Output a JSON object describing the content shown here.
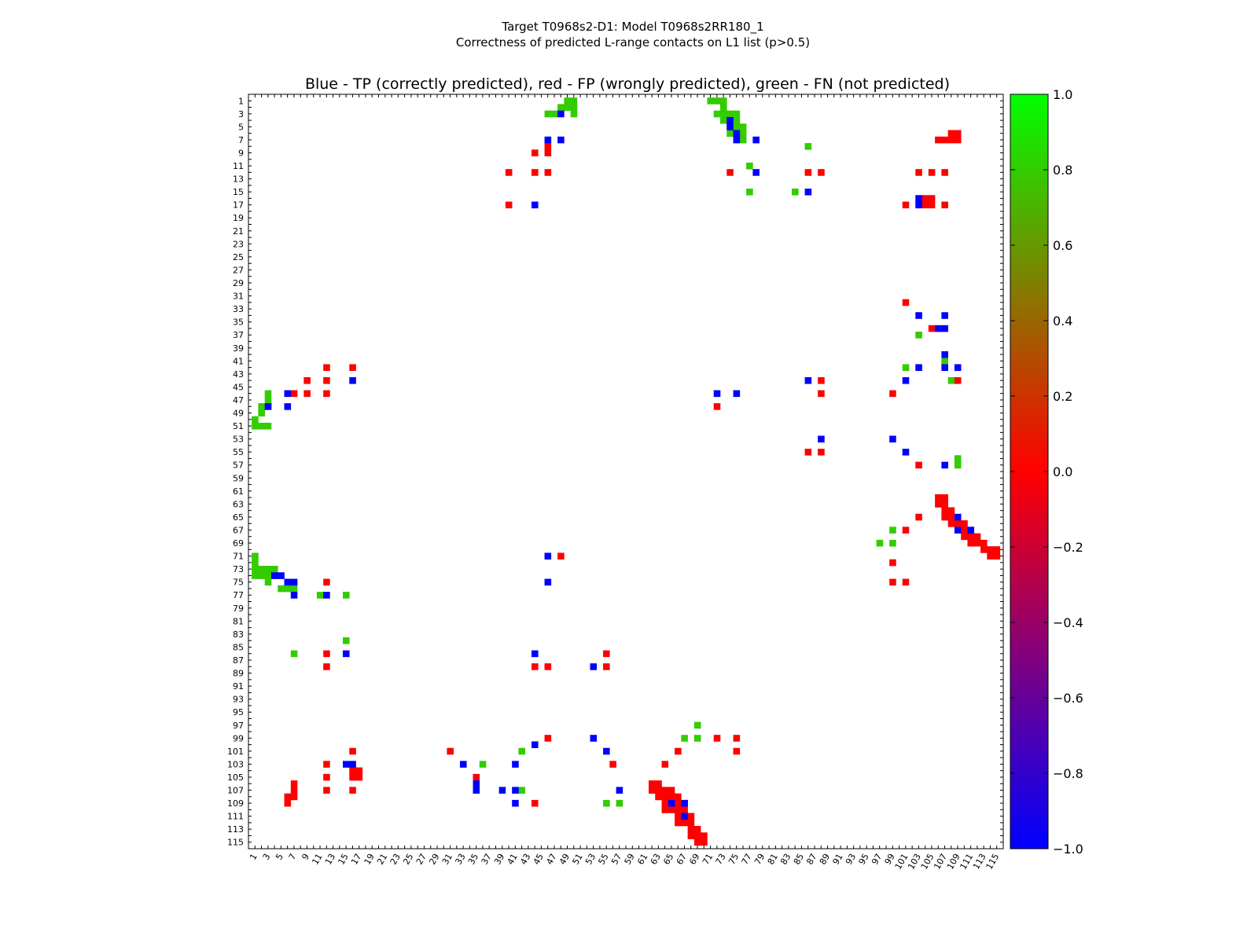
{
  "chart_data": {
    "type": "heatmap",
    "suptitle_line1": "Target T0968s2-D1: Model T0968s2RR180_1",
    "suptitle_line2": "Correctness of predicted L-range contacts on L1 list (p>0.5)",
    "title": "Blue - TP (correctly predicted), red - FP (wrongly predicted), green - FN (not predicted)",
    "n_residues": 115,
    "axis_ticks": [
      1,
      3,
      5,
      7,
      9,
      11,
      13,
      15,
      17,
      19,
      21,
      23,
      25,
      27,
      29,
      31,
      33,
      35,
      37,
      39,
      41,
      43,
      45,
      47,
      49,
      51,
      53,
      55,
      57,
      59,
      61,
      63,
      65,
      67,
      69,
      71,
      73,
      75,
      77,
      79,
      81,
      83,
      85,
      87,
      89,
      91,
      93,
      95,
      97,
      99,
      101,
      103,
      105,
      107,
      109,
      111,
      113,
      115
    ],
    "colorbar": {
      "min": -1.0,
      "max": 1.0,
      "ticks": [
        1.0,
        0.8,
        0.6,
        0.4,
        0.2,
        0.0,
        -0.2,
        -0.4,
        -0.6,
        -0.8,
        -1.0
      ],
      "tick_labels": [
        "1.0",
        "0.8",
        "0.6",
        "0.4",
        "0.2",
        "0.0",
        "−0.2",
        "−0.4",
        "−0.6",
        "−0.8",
        "−1.0"
      ],
      "colors": {
        "tp": "#0000ff",
        "fp": "#ff0000",
        "fn": "#33cc00"
      }
    },
    "legend": {
      "tp": "TP",
      "fp": "FP",
      "fn": "FN"
    },
    "cells": {
      "tp": [
        [
          3,
          48
        ],
        [
          4,
          74
        ],
        [
          5,
          74
        ],
        [
          6,
          75
        ],
        [
          7,
          46
        ],
        [
          7,
          48
        ],
        [
          7,
          75
        ],
        [
          7,
          78
        ],
        [
          12,
          78
        ],
        [
          15,
          86
        ],
        [
          16,
          103
        ],
        [
          17,
          103
        ],
        [
          17,
          44
        ],
        [
          34,
          103
        ],
        [
          34,
          107
        ],
        [
          36,
          106
        ],
        [
          36,
          107
        ],
        [
          40,
          107
        ],
        [
          42,
          103
        ],
        [
          42,
          107
        ],
        [
          42,
          109
        ],
        [
          44,
          16
        ],
        [
          44,
          86
        ],
        [
          44,
          101
        ],
        [
          46,
          6
        ],
        [
          46,
          72
        ],
        [
          46,
          75
        ],
        [
          48,
          3
        ],
        [
          48,
          6
        ],
        [
          53,
          88
        ],
        [
          53,
          99
        ],
        [
          55,
          101
        ],
        [
          57,
          107
        ],
        [
          71,
          46
        ],
        [
          74,
          4
        ],
        [
          74,
          5
        ],
        [
          75,
          6
        ],
        [
          75,
          7
        ],
        [
          75,
          46
        ],
        [
          77,
          7
        ],
        [
          77,
          12
        ],
        [
          86,
          15
        ],
        [
          86,
          44
        ],
        [
          88,
          53
        ],
        [
          99,
          53
        ],
        [
          100,
          44
        ],
        [
          101,
          55
        ],
        [
          103,
          15
        ],
        [
          103,
          16
        ],
        [
          103,
          33
        ],
        [
          103,
          41
        ],
        [
          106,
          35
        ],
        [
          107,
          35
        ],
        [
          107,
          39
        ],
        [
          107,
          41
        ],
        [
          107,
          57
        ],
        [
          109,
          41
        ],
        [
          109,
          65
        ],
        [
          109,
          67
        ],
        [
          111,
          67
        ],
        [
          65,
          109
        ],
        [
          67,
          109
        ],
        [
          67,
          111
        ]
      ],
      "fp": [
        [
          7,
          106
        ],
        [
          7,
          107
        ],
        [
          7,
          108
        ],
        [
          7,
          109
        ],
        [
          6,
          108
        ],
        [
          6,
          109
        ],
        [
          8,
          46
        ],
        [
          9,
          44
        ],
        [
          9,
          46
        ],
        [
          12,
          40
        ],
        [
          12,
          44
        ],
        [
          12,
          46
        ],
        [
          12,
          74
        ],
        [
          12,
          86
        ],
        [
          12,
          88
        ],
        [
          12,
          103
        ],
        [
          12,
          105
        ],
        [
          12,
          107
        ],
        [
          17,
          40
        ],
        [
          17,
          101
        ],
        [
          17,
          107
        ],
        [
          16,
          104
        ],
        [
          16,
          105
        ],
        [
          17,
          104
        ],
        [
          17,
          105
        ],
        [
          32,
          101
        ],
        [
          36,
          105
        ],
        [
          42,
          12
        ],
        [
          42,
          16
        ],
        [
          44,
          9
        ],
        [
          44,
          12
        ],
        [
          44,
          88
        ],
        [
          44,
          109
        ],
        [
          46,
          7
        ],
        [
          46,
          9
        ],
        [
          46,
          12
        ],
        [
          46,
          88
        ],
        [
          46,
          99
        ],
        [
          48,
          72
        ],
        [
          55,
          86
        ],
        [
          55,
          88
        ],
        [
          57,
          103
        ],
        [
          71,
          48
        ],
        [
          72,
          99
        ],
        [
          75,
          12
        ],
        [
          75,
          99
        ],
        [
          75,
          101
        ],
        [
          86,
          12
        ],
        [
          86,
          55
        ],
        [
          88,
          12
        ],
        [
          88,
          44
        ],
        [
          88,
          46
        ],
        [
          88,
          55
        ],
        [
          99,
          46
        ],
        [
          99,
          72
        ],
        [
          99,
          75
        ],
        [
          101,
          16
        ],
        [
          101,
          31
        ],
        [
          101,
          66
        ],
        [
          101,
          75
        ],
        [
          103,
          12
        ],
        [
          103,
          56
        ],
        [
          103,
          64
        ],
        [
          104,
          16
        ],
        [
          104,
          17
        ],
        [
          105,
          12
        ],
        [
          105,
          16
        ],
        [
          105,
          17
        ],
        [
          105,
          35
        ],
        [
          106,
          7
        ],
        [
          107,
          7
        ],
        [
          107,
          12
        ],
        [
          107,
          16
        ],
        [
          108,
          6
        ],
        [
          108,
          7
        ],
        [
          109,
          6
        ],
        [
          109,
          44
        ],
        [
          65,
          103
        ],
        [
          67,
          101
        ],
        [
          62,
          106
        ],
        [
          62,
          107
        ],
        [
          63,
          106
        ],
        [
          63,
          107
        ],
        [
          64,
          107
        ],
        [
          64,
          108
        ],
        [
          65,
          107
        ],
        [
          65,
          108
        ],
        [
          66,
          108
        ],
        [
          66,
          109
        ],
        [
          66,
          110
        ],
        [
          67,
          110
        ],
        [
          68,
          110
        ],
        [
          68,
          111
        ],
        [
          68,
          112
        ],
        [
          69,
          111
        ],
        [
          69,
          112
        ],
        [
          69,
          113
        ],
        [
          70,
          113
        ],
        [
          70,
          114
        ],
        [
          70,
          115
        ],
        [
          71,
          114
        ],
        [
          71,
          115
        ],
        [
          106,
          62
        ],
        [
          106,
          63
        ],
        [
          107,
          62
        ],
        [
          107,
          63
        ],
        [
          107,
          64
        ],
        [
          107,
          65
        ],
        [
          108,
          63
        ],
        [
          108,
          64
        ],
        [
          108,
          65
        ],
        [
          108,
          66
        ],
        [
          109,
          64
        ],
        [
          109,
          66
        ],
        [
          109,
          67
        ],
        [
          110,
          64
        ],
        [
          110,
          65
        ],
        [
          110,
          66
        ],
        [
          110,
          67
        ],
        [
          111,
          66
        ],
        [
          111,
          68
        ],
        [
          112,
          66
        ],
        [
          112,
          67
        ],
        [
          112,
          68
        ],
        [
          113,
          68
        ],
        [
          113,
          69
        ],
        [
          114,
          68
        ],
        [
          114,
          69
        ],
        [
          114,
          70
        ],
        [
          115,
          69
        ],
        [
          115,
          70
        ]
      ],
      "fn": [
        [
          1,
          49
        ],
        [
          1,
          50
        ],
        [
          2,
          48
        ],
        [
          2,
          49
        ],
        [
          2,
          50
        ],
        [
          3,
          46
        ],
        [
          3,
          47
        ],
        [
          3,
          50
        ],
        [
          1,
          71
        ],
        [
          1,
          72
        ],
        [
          1,
          73
        ],
        [
          2,
          73
        ],
        [
          3,
          72
        ],
        [
          3,
          73
        ],
        [
          3,
          74
        ],
        [
          3,
          75
        ],
        [
          4,
          73
        ],
        [
          4,
          75
        ],
        [
          5,
          74
        ],
        [
          5,
          75
        ],
        [
          5,
          76
        ],
        [
          6,
          74
        ],
        [
          6,
          76
        ],
        [
          7,
          76
        ],
        [
          8,
          86
        ],
        [
          11,
          77
        ],
        [
          15,
          77
        ],
        [
          15,
          84
        ],
        [
          37,
          103
        ],
        [
          41,
          107
        ],
        [
          42,
          101
        ],
        [
          44,
          108
        ],
        [
          47,
          3
        ],
        [
          46,
          3
        ],
        [
          48,
          2
        ],
        [
          48,
          3
        ],
        [
          49,
          2
        ],
        [
          50,
          1
        ],
        [
          51,
          1
        ],
        [
          51,
          2
        ],
        [
          51,
          3
        ],
        [
          56,
          109
        ],
        [
          57,
          109
        ],
        [
          67,
          99
        ],
        [
          69,
          97
        ],
        [
          69,
          99
        ],
        [
          71,
          1
        ],
        [
          72,
          1
        ],
        [
          73,
          1
        ],
        [
          73,
          2
        ],
        [
          73,
          3
        ],
        [
          73,
          4
        ],
        [
          74,
          1
        ],
        [
          74,
          2
        ],
        [
          74,
          3
        ],
        [
          74,
          4
        ],
        [
          75,
          3
        ],
        [
          75,
          6
        ],
        [
          76,
          5
        ],
        [
          76,
          6
        ],
        [
          76,
          7
        ],
        [
          77,
          11
        ],
        [
          77,
          15
        ],
        [
          84,
          15
        ],
        [
          86,
          7
        ],
        [
          97,
          69
        ],
        [
          99,
          67
        ],
        [
          99,
          69
        ],
        [
          101,
          42
        ],
        [
          103,
          36
        ],
        [
          107,
          42
        ],
        [
          109,
          55
        ],
        [
          109,
          57
        ]
      ]
    }
  }
}
